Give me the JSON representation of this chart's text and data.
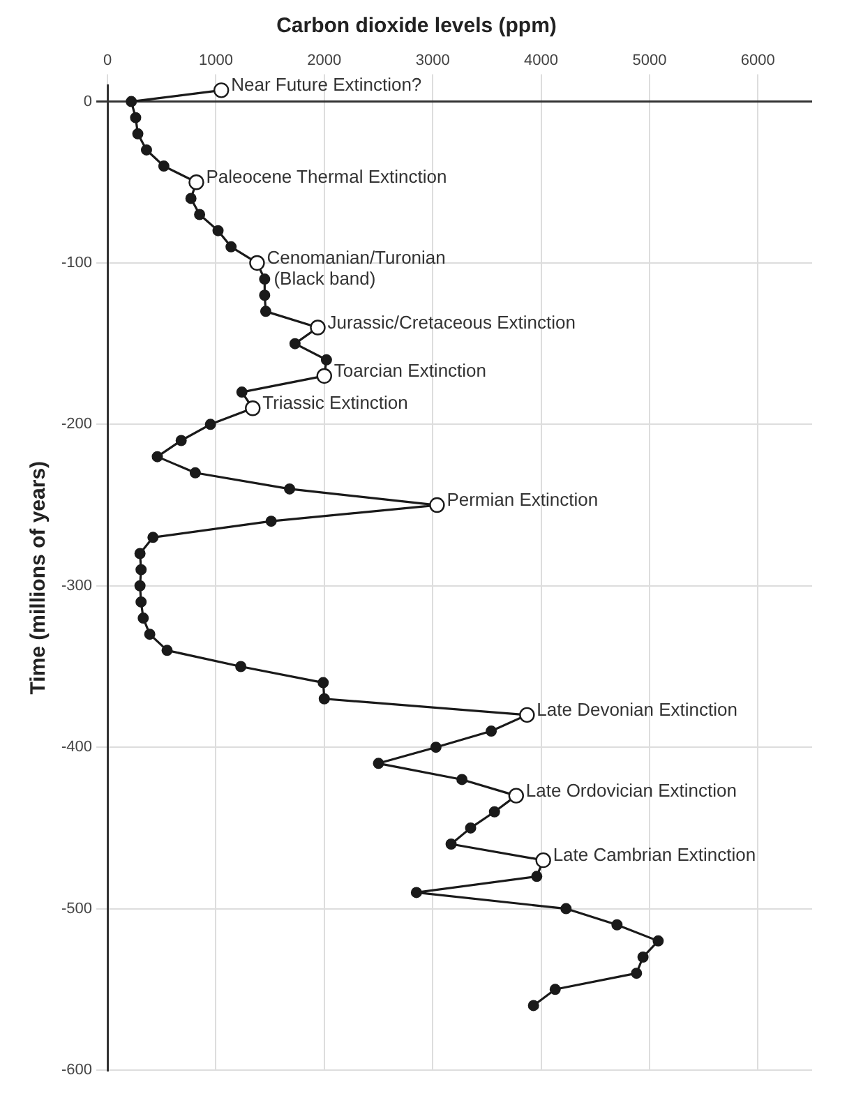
{
  "chart_data": {
    "type": "line",
    "title": "Carbon dioxide levels (ppm)",
    "ylabel": "Time (millions of years)",
    "xlim": [
      0,
      6500
    ],
    "xticks": [
      0,
      1000,
      2000,
      3000,
      4000,
      5000,
      6000
    ],
    "ylim": [
      -600,
      10
    ],
    "yticks": [
      0,
      -100,
      -200,
      -300,
      -400,
      -500,
      -600
    ],
    "grid": true,
    "marker": "circle",
    "series": [
      {
        "color": "#1a1a1a",
        "x": [
          1050,
          220,
          260,
          280,
          360,
          520,
          820,
          770,
          850,
          1020,
          1140,
          1380,
          1450,
          1450,
          1460,
          1940,
          1730,
          2020,
          2000,
          1240,
          1340,
          950,
          680,
          460,
          810,
          1680,
          3040,
          1510,
          420,
          300,
          310,
          300,
          310,
          330,
          390,
          550,
          1230,
          1990,
          2000,
          3870,
          3540,
          3030,
          2500,
          3270,
          3770,
          3570,
          3350,
          3170,
          4020,
          3960,
          2850,
          4230,
          4700,
          5080,
          4940,
          4880,
          4130,
          3930
        ],
        "values": [
          7,
          0,
          -10,
          -20,
          -30,
          -40,
          -50,
          -60,
          -70,
          -80,
          -90,
          -100,
          -110,
          -120,
          -130,
          -140,
          -150,
          -160,
          -170,
          -180,
          -190,
          -200,
          -210,
          -220,
          -230,
          -240,
          -250,
          -260,
          -270,
          -280,
          -290,
          -300,
          -310,
          -320,
          -330,
          -340,
          -350,
          -360,
          -370,
          -380,
          -390,
          -400,
          -410,
          -420,
          -430,
          -440,
          -450,
          -460,
          -470,
          -480,
          -490,
          -500,
          -510,
          -520,
          -530,
          -540,
          -550,
          -560
        ]
      },
      {
        "type": "scatter",
        "color": "#ffffff",
        "x": [
          1050,
          820,
          1380,
          1940,
          2000,
          1340,
          3040,
          3870,
          3770,
          4020
        ],
        "values": [
          7,
          -50,
          -100,
          -140,
          -170,
          -190,
          -250,
          -380,
          -430,
          -470
        ]
      }
    ],
    "annotations": [
      {
        "text": "Near Future Extinction?",
        "x": 1050,
        "y": 7
      },
      {
        "text": "Paleocene Thermal Extinction",
        "x": 820,
        "y": -50
      },
      {
        "text": "Cenomanian/Turonian\n(Black band)",
        "x": 1380,
        "y": -100
      },
      {
        "text": "Jurassic/Cretaceous Extinction",
        "x": 1940,
        "y": -140
      },
      {
        "text": "Toarcian Extinction",
        "x": 2000,
        "y": -170
      },
      {
        "text": "Triassic Extinction",
        "x": 1340,
        "y": -190
      },
      {
        "text": "Permian Extinction",
        "x": 3040,
        "y": -250
      },
      {
        "text": "Late Devonian Extinction",
        "x": 3870,
        "y": -380
      },
      {
        "text": "Late Ordovician Extinction",
        "x": 3770,
        "y": -430
      },
      {
        "text": "Late Cambrian Extinction",
        "x": 4020,
        "y": -470
      }
    ]
  }
}
